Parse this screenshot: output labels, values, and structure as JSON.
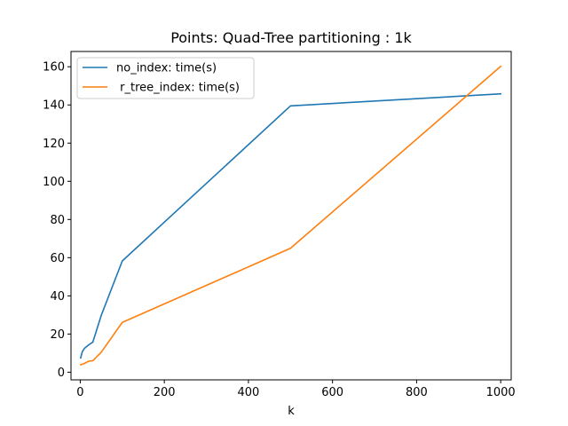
{
  "chart_data": {
    "type": "line",
    "title": "Points: Quad-Tree partitioning : 1k",
    "xlabel": "k",
    "ylabel": "",
    "xlim": [
      -22,
      1025
    ],
    "ylim": [
      -4,
      168
    ],
    "xticks": [
      0,
      200,
      400,
      600,
      800,
      1000
    ],
    "yticks": [
      0,
      20,
      40,
      60,
      80,
      100,
      120,
      140,
      160
    ],
    "grid": false,
    "legend_position": "top-left",
    "series": [
      {
        "name": "no_index: time(s)",
        "color": "#1f77b4",
        "x": [
          1,
          5,
          10,
          20,
          30,
          50,
          100,
          500,
          1000
        ],
        "y": [
          7.5,
          10.8,
          12.5,
          14.3,
          15.8,
          29.8,
          58.3,
          139.5,
          145.8
        ]
      },
      {
        "name": " r_tree_index: time(s)",
        "color": "#ff7f0e",
        "x": [
          1,
          5,
          10,
          20,
          30,
          50,
          100,
          500,
          1000
        ],
        "y": [
          3.9,
          4.2,
          4.6,
          5.8,
          6.0,
          10.5,
          26.1,
          64.9,
          160.2
        ]
      }
    ]
  }
}
